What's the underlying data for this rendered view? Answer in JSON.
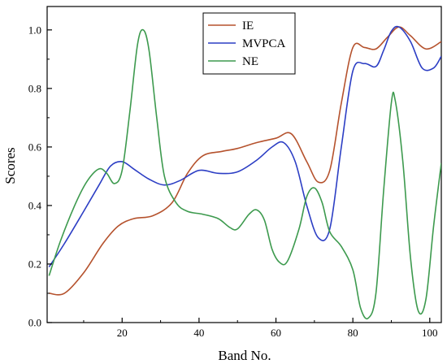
{
  "chart_data": {
    "type": "line",
    "title": "",
    "xlabel": "Band No.",
    "ylabel": "Scores",
    "xlim": [
      0.5,
      103
    ],
    "ylim": [
      0.0,
      1.08
    ],
    "xticks": [
      20,
      40,
      60,
      80,
      100
    ],
    "yticks": [
      0.0,
      0.2,
      0.4,
      0.6,
      0.8,
      1.0
    ],
    "ytick_labels": [
      "0.0",
      "0.2",
      "0.4",
      "0.6",
      "0.8",
      "1.0"
    ],
    "grid": false,
    "legend_position": "top-center",
    "series": [
      {
        "name": "IE",
        "color": "#b5522d",
        "points": [
          [
            1,
            0.1
          ],
          [
            5,
            0.1
          ],
          [
            10,
            0.17
          ],
          [
            15,
            0.27
          ],
          [
            19,
            0.33
          ],
          [
            23,
            0.355
          ],
          [
            28,
            0.365
          ],
          [
            33,
            0.41
          ],
          [
            37,
            0.51
          ],
          [
            41,
            0.57
          ],
          [
            46,
            0.585
          ],
          [
            50,
            0.595
          ],
          [
            55,
            0.615
          ],
          [
            60,
            0.63
          ],
          [
            64,
            0.645
          ],
          [
            68,
            0.55
          ],
          [
            71,
            0.48
          ],
          [
            74,
            0.52
          ],
          [
            77,
            0.75
          ],
          [
            80,
            0.94
          ],
          [
            83,
            0.94
          ],
          [
            86,
            0.935
          ],
          [
            89,
            0.975
          ],
          [
            92,
            1.01
          ],
          [
            95,
            0.98
          ],
          [
            99,
            0.935
          ],
          [
            103,
            0.96
          ]
        ]
      },
      {
        "name": "MVPCA",
        "color": "#2c3ec4",
        "points": [
          [
            1,
            0.19
          ],
          [
            5,
            0.27
          ],
          [
            10,
            0.38
          ],
          [
            14,
            0.47
          ],
          [
            17,
            0.535
          ],
          [
            20,
            0.55
          ],
          [
            23,
            0.525
          ],
          [
            27,
            0.49
          ],
          [
            31,
            0.47
          ],
          [
            35,
            0.485
          ],
          [
            40,
            0.52
          ],
          [
            45,
            0.51
          ],
          [
            50,
            0.515
          ],
          [
            55,
            0.555
          ],
          [
            59,
            0.6
          ],
          [
            62,
            0.615
          ],
          [
            65,
            0.55
          ],
          [
            68,
            0.4
          ],
          [
            71,
            0.29
          ],
          [
            74,
            0.32
          ],
          [
            77,
            0.6
          ],
          [
            80,
            0.86
          ],
          [
            83,
            0.885
          ],
          [
            86,
            0.875
          ],
          [
            88,
            0.93
          ],
          [
            90,
            0.995
          ],
          [
            92,
            1.01
          ],
          [
            95,
            0.96
          ],
          [
            98,
            0.87
          ],
          [
            101,
            0.87
          ],
          [
            103,
            0.91
          ]
        ]
      },
      {
        "name": "NE",
        "color": "#3d9a4e",
        "points": [
          [
            1,
            0.16
          ],
          [
            4,
            0.28
          ],
          [
            8,
            0.41
          ],
          [
            11,
            0.485
          ],
          [
            14,
            0.525
          ],
          [
            16,
            0.51
          ],
          [
            18,
            0.475
          ],
          [
            20,
            0.52
          ],
          [
            22,
            0.72
          ],
          [
            24,
            0.95
          ],
          [
            25.5,
            1.0
          ],
          [
            27,
            0.93
          ],
          [
            29,
            0.7
          ],
          [
            31,
            0.5
          ],
          [
            34,
            0.41
          ],
          [
            37,
            0.38
          ],
          [
            41,
            0.37
          ],
          [
            45,
            0.355
          ],
          [
            48,
            0.325
          ],
          [
            50,
            0.32
          ],
          [
            53,
            0.37
          ],
          [
            55,
            0.385
          ],
          [
            57,
            0.35
          ],
          [
            59,
            0.25
          ],
          [
            61,
            0.205
          ],
          [
            63,
            0.21
          ],
          [
            66,
            0.32
          ],
          [
            68,
            0.43
          ],
          [
            70,
            0.46
          ],
          [
            72,
            0.41
          ],
          [
            74,
            0.31
          ],
          [
            77,
            0.26
          ],
          [
            80,
            0.18
          ],
          [
            82,
            0.05
          ],
          [
            84,
            0.015
          ],
          [
            86,
            0.1
          ],
          [
            88,
            0.45
          ],
          [
            90,
            0.75
          ],
          [
            91,
            0.76
          ],
          [
            93,
            0.55
          ],
          [
            95,
            0.22
          ],
          [
            97,
            0.04
          ],
          [
            99,
            0.08
          ],
          [
            101,
            0.33
          ],
          [
            103,
            0.545
          ]
        ]
      }
    ]
  }
}
